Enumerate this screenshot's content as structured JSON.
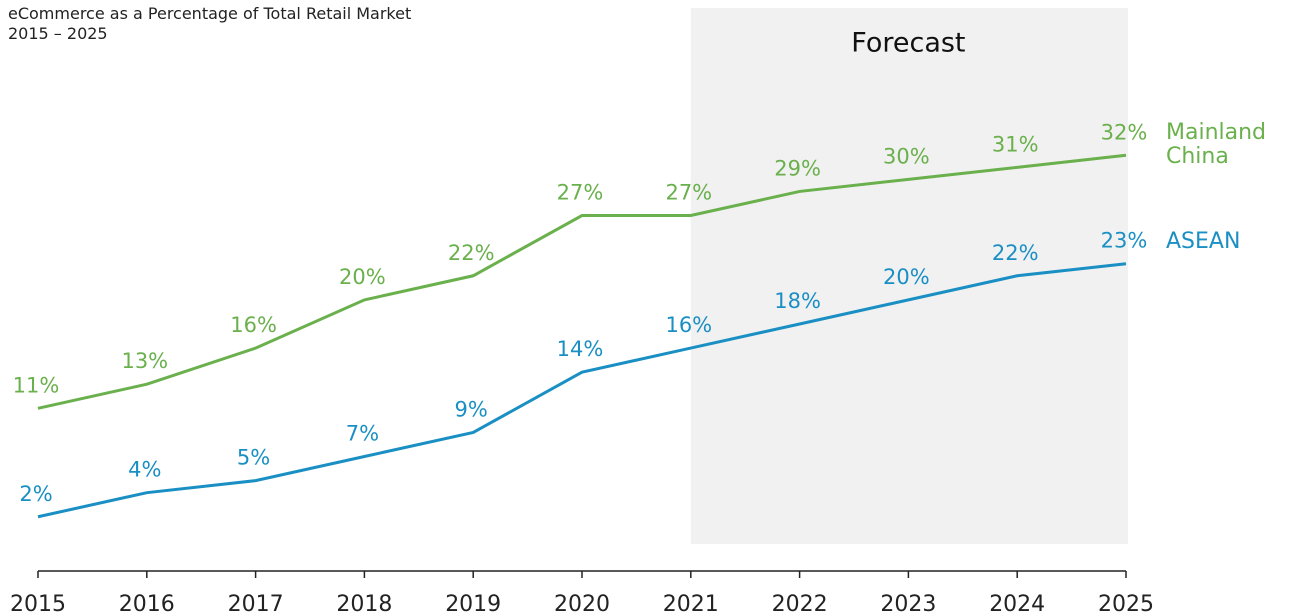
{
  "chart_data": {
    "type": "line",
    "title": "eCommerce as a Percentage of Total Retail Market",
    "subtitle": "2015 – 2025",
    "annotation": "Forecast",
    "categories": [
      "2015",
      "2016",
      "2017",
      "2018",
      "2019",
      "2020",
      "2021",
      "2022",
      "2023",
      "2024",
      "2025"
    ],
    "series": [
      {
        "name": "Mainland China",
        "color": "#6ab04c",
        "values": [
          11,
          13,
          16,
          20,
          22,
          27,
          27,
          29,
          30,
          31,
          32
        ],
        "value_labels": [
          "11%",
          "13%",
          "16%",
          "20%",
          "22%",
          "27%",
          "27%",
          "29%",
          "30%",
          "31%",
          "32%"
        ]
      },
      {
        "name": "ASEAN",
        "color": "#1a8fc4",
        "values": [
          2,
          4,
          5,
          7,
          9,
          14,
          16,
          18,
          20,
          22,
          23
        ],
        "value_labels": [
          "2%",
          "4%",
          "5%",
          "7%",
          "9%",
          "14%",
          "16%",
          "18%",
          "20%",
          "22%",
          "23%"
        ]
      }
    ],
    "ylim": [
      -2.5,
      44
    ]
  }
}
